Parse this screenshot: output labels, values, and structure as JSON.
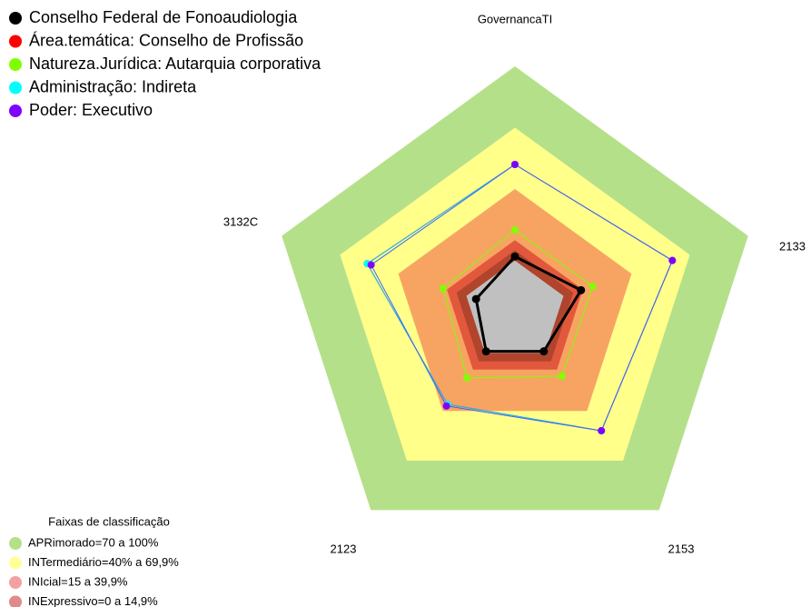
{
  "chart_data": {
    "type": "radar",
    "axes": [
      "GovernancaTI",
      "2133",
      "2153",
      "2123",
      "3132C"
    ],
    "ylim": [
      -20,
      100
    ],
    "zones": [
      {
        "label": "APRimorado=70 a 100%",
        "value": 100,
        "color": "#b5e08a"
      },
      {
        "label": "INTermediário=40% a 69,9%",
        "value": 70,
        "color": "#ffff8a"
      },
      {
        "label": "INIcial=15 a 39,9%",
        "value": 40,
        "color": "#f7a463"
      },
      {
        "label": "INExpressivo=0 a 14,9%",
        "value": 15,
        "color": "#e2583c"
      }
    ],
    "inner_zones": [
      {
        "value": 10,
        "color": "#b0442c"
      },
      {
        "value": 5,
        "color": "#c0c0c0"
      }
    ],
    "zones_title": "Faixas de classificação",
    "zones_legend_colors": [
      "#b5e08a",
      "#ffff99",
      "#f5a0a0",
      "#e08a8a"
    ],
    "series": [
      {
        "name": "Conselho Federal de Fonoaudiologia",
        "color": "#000000",
        "line_color": "#000000",
        "values": [
          7,
          14,
          4,
          4,
          0
        ]
      },
      {
        "name": "Área.temática: Conselho de Profissão",
        "color": "#ff0000",
        "line_color": "#ff0000",
        "values": [
          52,
          61,
          52,
          36,
          56
        ]
      },
      {
        "name": "Natureza.Jurídica: Autarquia corporativa",
        "color": "#80ff00",
        "line_color": "#80ff00",
        "values": [
          20,
          20,
          19,
          20,
          17
        ]
      },
      {
        "name": "Administração: Indireta",
        "color": "#00ffff",
        "line_color": "#00c8ff",
        "values": [
          52,
          61,
          52,
          36,
          56
        ]
      },
      {
        "name": "Poder: Executivo",
        "color": "#8000ff",
        "line_color": "#4060ff",
        "values": [
          52,
          61,
          52,
          37,
          54
        ]
      }
    ]
  }
}
